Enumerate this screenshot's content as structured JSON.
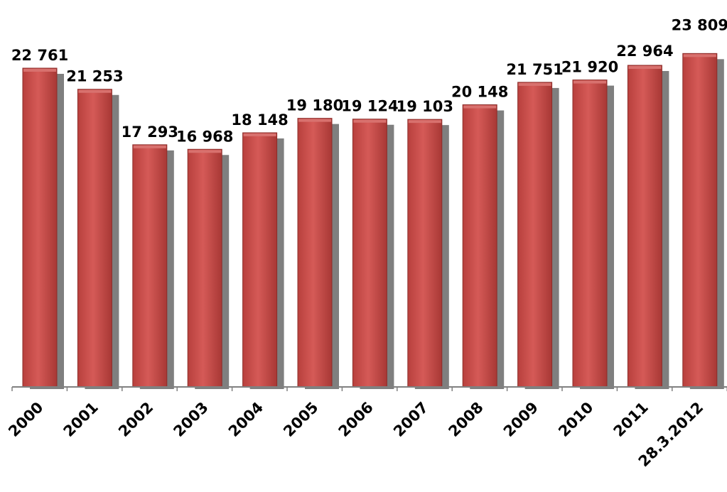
{
  "chart_data": {
    "type": "bar",
    "categories": [
      "2000",
      "2001",
      "2002",
      "2003",
      "2004",
      "2005",
      "2006",
      "2007",
      "2008",
      "2009",
      "2010",
      "2011",
      "28.3.2012"
    ],
    "values": [
      22761,
      21253,
      17293,
      16968,
      18148,
      19180,
      19124,
      19103,
      20148,
      21751,
      21920,
      22964,
      23809
    ],
    "value_labels": [
      "22 761",
      "21 253",
      "17 293",
      "16 968",
      "18 148",
      "19 180",
      "19 124",
      "19 103",
      "20 148",
      "21 751",
      "21 920",
      "22 964",
      "23 809"
    ],
    "ylim": [
      0,
      25000
    ],
    "grid": false,
    "legend": "none",
    "colors": {
      "bar": "#c0504d",
      "bar_top": "#d8716e",
      "shadow": "#7f7f7f",
      "axis": "#808080"
    }
  }
}
